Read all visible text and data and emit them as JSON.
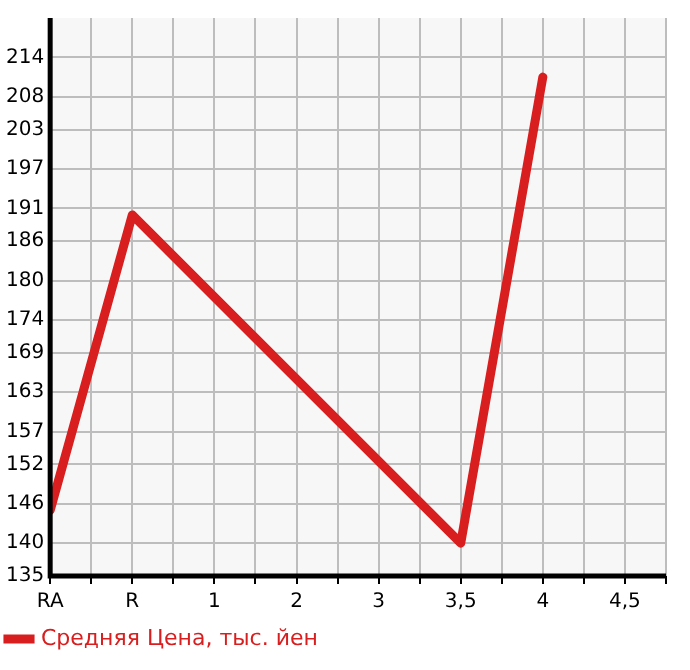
{
  "chart_data": {
    "type": "line",
    "categories": [
      "RA",
      "R",
      "1",
      "2",
      "3",
      "3,5",
      "4",
      "4,5"
    ],
    "series": [
      {
        "name": "Средняя Цена, тыс. йен",
        "color": "#d81e1e",
        "values": [
          145,
          190,
          null,
          null,
          null,
          140,
          211,
          null
        ]
      }
    ],
    "ylim": [
      135,
      220
    ],
    "yticks": [
      135,
      140,
      146,
      152,
      157,
      163,
      169,
      174,
      180,
      186,
      191,
      197,
      203,
      208,
      214
    ],
    "grid": true,
    "legend": "bottom left",
    "marker": "none",
    "line_style": "solid"
  }
}
